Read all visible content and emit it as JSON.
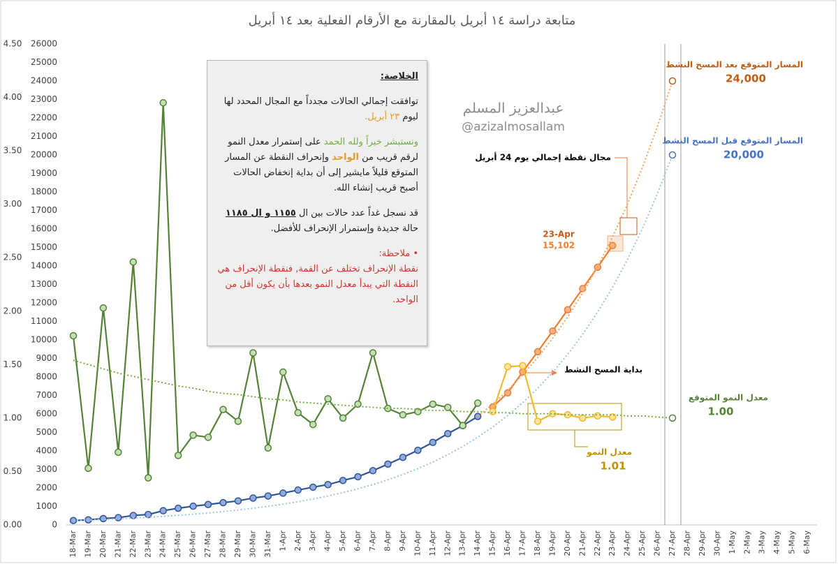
{
  "chart_data": {
    "type": "line",
    "title": "متابعة دراسة ١٤ أبريل بالمقارنة مع الأرقام الفعلية بعد ١٤ أبريل",
    "categories": [
      "18-Mar",
      "19-Mar",
      "20-Mar",
      "21-Mar",
      "22-Mar",
      "23-Mar",
      "24-Mar",
      "25-Mar",
      "26-Mar",
      "27-Mar",
      "28-Mar",
      "29-Mar",
      "30-Mar",
      "31-Mar",
      "1-Apr",
      "2-Apr",
      "3-Apr",
      "4-Apr",
      "5-Apr",
      "6-Apr",
      "7-Apr",
      "8-Apr",
      "9-Apr",
      "10-Apr",
      "11-Apr",
      "12-Apr",
      "13-Apr",
      "14-Apr",
      "15-Apr",
      "16-Apr",
      "17-Apr",
      "18-Apr",
      "19-Apr",
      "20-Apr",
      "21-Apr",
      "22-Apr",
      "23-Apr",
      "24-Apr",
      "25-Apr",
      "26-Apr",
      "27-Apr",
      "28-Apr",
      "29-Apr",
      "30-Apr",
      "1-May",
      "2-May",
      "3-May",
      "4-May",
      "5-May",
      "6-May"
    ],
    "ylim": [
      0,
      26000
    ],
    "yticks": [
      0,
      1000,
      2000,
      3000,
      4000,
      5000,
      6000,
      7000,
      8000,
      9000,
      10000,
      11000,
      12000,
      13000,
      14000,
      15000,
      16000,
      17000,
      18000,
      19000,
      20000,
      21000,
      22000,
      23000,
      24000,
      25000,
      26000
    ],
    "y2lim": [
      0,
      4.5
    ],
    "y2ticks": [
      {
        "value": 0,
        "label": "0.00"
      },
      {
        "value": 0.5,
        "label": "0.50"
      },
      {
        "value": 1,
        "label": "1.00"
      },
      {
        "value": 1.5,
        "label": "1.50"
      },
      {
        "value": 2,
        "label": "2.00"
      },
      {
        "value": 2.5,
        "label": "2.50"
      },
      {
        "value": 3,
        "label": "3.00"
      },
      {
        "value": 3.5,
        "label": "3.50"
      },
      {
        "value": 4,
        "label": "4.00"
      },
      {
        "value": 4.5,
        "label": "4.50"
      }
    ],
    "series": [
      {
        "color": "#2f5597",
        "fill": "#8faadc",
        "style": "solid",
        "values": [
          238,
          274,
          344,
          392,
          511,
          562,
          767,
          900,
          1012,
          1104,
          1203,
          1299,
          1453,
          1563,
          1720,
          1885,
          2039,
          2179,
          2402,
          2605,
          2932,
          3287,
          3651,
          4033,
          4462,
          4934,
          5369,
          5862,
          null,
          null,
          null,
          null,
          null,
          null,
          null,
          null,
          null,
          null,
          null,
          null,
          null,
          null,
          null,
          null,
          null,
          null,
          null,
          null,
          null,
          null
        ]
      },
      {
        "color": "#ed7d31",
        "fill": "#f4b183",
        "style": "solid",
        "values": [
          null,
          null,
          null,
          null,
          null,
          null,
          null,
          null,
          null,
          null,
          null,
          null,
          null,
          null,
          null,
          null,
          null,
          null,
          null,
          null,
          null,
          null,
          null,
          null,
          null,
          null,
          null,
          null,
          6380,
          7142,
          8274,
          9362,
          10484,
          11631,
          12772,
          13930,
          15102,
          null,
          null,
          null,
          null,
          null,
          null,
          null,
          null,
          null,
          null,
          null,
          null,
          null
        ],
        "value_labels": [
          null,
          null,
          null,
          null,
          null,
          null,
          null,
          null,
          null,
          null,
          null,
          null,
          null,
          null,
          null,
          null,
          null,
          null,
          null,
          null,
          null,
          null,
          null,
          null,
          null,
          null,
          null,
          null,
          null,
          null,
          null,
          null,
          null,
          null,
          null,
          null,
          "15,102",
          null,
          null,
          null,
          null,
          null,
          null,
          null,
          null,
          null,
          null,
          null,
          null,
          null
        ]
      },
      {
        "name": "المسار المتوقع قبل المسح النشط",
        "color": "#9dc3e6",
        "label_color": "#4472c4",
        "style": "dotted",
        "values": [
          238,
          266,
          297,
          332,
          371,
          414,
          463,
          517,
          578,
          645,
          721,
          805,
          900,
          1005,
          1123,
          1254,
          1401,
          1565,
          1749,
          1954,
          2183,
          2438,
          2724,
          3043,
          3400,
          3798,
          4243,
          4740,
          5296,
          5916,
          6609,
          7384,
          8249,
          9216,
          10296,
          11502,
          12850,
          14356,
          16038,
          17917,
          20000,
          null,
          null,
          null,
          null,
          null,
          null,
          null,
          null,
          null
        ],
        "value_labels": [
          null,
          null,
          null,
          null,
          null,
          null,
          null,
          null,
          null,
          null,
          null,
          null,
          null,
          null,
          null,
          null,
          null,
          null,
          null,
          null,
          null,
          null,
          null,
          null,
          null,
          null,
          null,
          null,
          null,
          null,
          null,
          null,
          null,
          null,
          null,
          null,
          null,
          null,
          null,
          null,
          "20,000",
          null,
          null,
          null,
          null,
          null,
          null,
          null,
          null,
          null
        ]
      },
      {
        "name": "المسار المتوقع بعد المسح النشط",
        "color": "#f4a460",
        "label_color": "#c55a11",
        "style": "dotted",
        "values": [
          null,
          null,
          null,
          null,
          null,
          null,
          null,
          null,
          null,
          null,
          null,
          null,
          null,
          null,
          null,
          null,
          null,
          null,
          null,
          null,
          null,
          null,
          null,
          null,
          null,
          null,
          null,
          5862,
          6534,
          7283,
          8117,
          9048,
          10085,
          11241,
          12529,
          13965,
          15566,
          17350,
          19339,
          21556,
          24000,
          null,
          null,
          null,
          null,
          null,
          null,
          null,
          null,
          null
        ],
        "value_labels": [
          null,
          null,
          null,
          null,
          null,
          null,
          null,
          null,
          null,
          null,
          null,
          null,
          null,
          null,
          null,
          null,
          null,
          null,
          null,
          null,
          null,
          null,
          null,
          null,
          null,
          null,
          null,
          null,
          null,
          null,
          null,
          null,
          null,
          null,
          null,
          null,
          null,
          null,
          null,
          null,
          "24,000",
          null,
          null,
          null,
          null,
          null,
          null,
          null,
          null,
          null
        ]
      },
      {
        "color": "#548235",
        "fill": "#c5e0b4",
        "style": "solid",
        "axis": "y2",
        "values": [
          1.77,
          0.53,
          2.03,
          0.68,
          2.46,
          0.44,
          3.95,
          0.65,
          0.84,
          0.82,
          1.08,
          0.97,
          1.61,
          0.72,
          1.43,
          1.05,
          0.94,
          1.18,
          1.0,
          1.13,
          1.61,
          1.09,
          1.03,
          1.06,
          1.13,
          1.1,
          0.93,
          1.14,
          null,
          null,
          null,
          null,
          null,
          null,
          null,
          null,
          null,
          null,
          null,
          null,
          null,
          null,
          null,
          null,
          null,
          null,
          null,
          null,
          null,
          null
        ]
      },
      {
        "name": "معدل النمو",
        "color": "#f2b82e",
        "label_color": "#bf9000",
        "fill": "#ffe699",
        "style": "solid",
        "axis": "y2",
        "values": [
          null,
          null,
          null,
          null,
          null,
          null,
          null,
          null,
          null,
          null,
          null,
          null,
          null,
          null,
          null,
          null,
          null,
          null,
          null,
          null,
          null,
          null,
          null,
          null,
          null,
          null,
          null,
          null,
          1.06,
          1.48,
          1.49,
          0.97,
          1.04,
          1.03,
          1.0,
          1.02,
          1.01,
          null,
          null,
          null,
          null,
          null,
          null,
          null,
          null,
          null,
          null,
          null,
          null,
          null
        ],
        "value_labels": [
          null,
          null,
          null,
          null,
          null,
          null,
          null,
          null,
          null,
          null,
          null,
          null,
          null,
          null,
          null,
          null,
          null,
          null,
          null,
          null,
          null,
          null,
          null,
          null,
          null,
          null,
          null,
          null,
          null,
          null,
          null,
          null,
          null,
          null,
          null,
          null,
          "1.01",
          null,
          null,
          null,
          null,
          null,
          null,
          null,
          null,
          null,
          null,
          null,
          null,
          null
        ]
      },
      {
        "name": "معدل النمو المتوقع",
        "color": "#70ad47",
        "label_color": "#548235",
        "style": "dotted",
        "axis": "y2",
        "values": [
          1.54,
          1.5,
          1.46,
          1.42,
          1.39,
          1.36,
          1.33,
          1.3,
          1.28,
          1.25,
          1.23,
          1.22,
          1.2,
          1.18,
          1.17,
          1.15,
          1.14,
          1.13,
          1.12,
          1.11,
          1.1,
          1.09,
          1.09,
          1.08,
          1.07,
          1.07,
          1.06,
          1.06,
          1.05,
          1.05,
          1.04,
          1.04,
          1.04,
          1.03,
          1.03,
          1.03,
          1.03,
          1.02,
          1.02,
          1.01,
          1.0,
          null,
          null,
          null,
          null,
          null,
          null,
          null,
          null,
          null
        ],
        "value_labels": [
          null,
          null,
          null,
          null,
          null,
          null,
          null,
          null,
          null,
          null,
          null,
          null,
          null,
          null,
          null,
          null,
          null,
          null,
          null,
          null,
          null,
          null,
          null,
          null,
          null,
          null,
          null,
          null,
          null,
          null,
          null,
          null,
          null,
          null,
          null,
          null,
          null,
          null,
          null,
          null,
          "1.00",
          null,
          null,
          null,
          null,
          null,
          null,
          null,
          null,
          null
        ]
      }
    ],
    "annotations": [
      "مجال نقطة إجمالي يوم 24 أبريل",
      "23-Apr",
      "بداية المسح النشط"
    ],
    "watermark": [
      "عبدالعزيز المسلم",
      "@azizalmosallam"
    ],
    "note": {
      "heading": "الخلاصة:",
      "p1": [
        "توافقت إجمالي الحالات مجدداً مع المجال المحدد لها ليوم",
        "٢٣ أبريل."
      ],
      "p2": [
        "ونستبشر خيراً ولله الحمد",
        "على إستمرار معدل النمو لرقم قريب من",
        "الواحد",
        "وإنحراف النقطة عن المسار المتوقع قليلاً مايشير إلى أن بداية إنخفاض الحالات أصبح قريب إنشاء الله."
      ],
      "p3": [
        "قد نسجل غداً عدد حالات بين ال",
        "١١٥٥ و ال ١١٨٥",
        "حالة جديدة وإستمرار الإنحراف للأفضل."
      ],
      "remark": "ملاحظة:",
      "remark_text": "نقطة الإنحراف تختلف عن القمة, فنقطة الإنحراف هي النقطة التي يبدأ معدل النمو بعدها بأن يكون أقل من الواحد."
    }
  }
}
